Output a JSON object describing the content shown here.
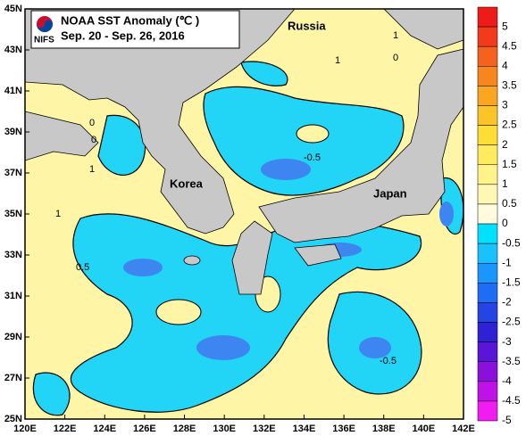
{
  "title": "NOAA SST Anomaly (℃ )",
  "subtitle": "Sep. 20 - Sep. 26, 2016",
  "logo": "NIFS",
  "places": [
    "Russia",
    "Korea",
    "Japan"
  ],
  "longitudes": [
    "120E",
    "122E",
    "124E",
    "126E",
    "128E",
    "130E",
    "132E",
    "134E",
    "136E",
    "138E",
    "140E",
    "142E"
  ],
  "latitudes": [
    "45N",
    "43N",
    "41N",
    "39N",
    "37N",
    "35N",
    "33N",
    "31N",
    "29N",
    "27N",
    "25N"
  ],
  "contour_labels": [
    "1",
    "1",
    "0",
    "-0.5",
    "0",
    "1",
    "1",
    "0.5",
    "-0.5",
    "0"
  ],
  "colorbar": {
    "labels": [
      "5",
      "4.5",
      "4",
      "3.5",
      "3",
      "2.5",
      "2",
      "1.5",
      "1",
      "0.5",
      "0",
      "-0.5",
      "-1",
      "-1.5",
      "-2",
      "-2.5",
      "-3",
      "-3.5",
      "-4",
      "-4.5",
      "-5"
    ],
    "colors": [
      "#ee1b1b",
      "#f23a1c",
      "#f5621d",
      "#f8861f",
      "#faa621",
      "#fcc426",
      "#fedd34",
      "#ffec5e",
      "#fff38a",
      "#fff8b4",
      "#fffbdc",
      "#00e1ff",
      "#19c2ff",
      "#1a97ff",
      "#1f6cf5",
      "#2444e4",
      "#2f22d4",
      "#5916d6",
      "#8a10dc",
      "#bf12e6",
      "#f01cf0"
    ]
  }
}
